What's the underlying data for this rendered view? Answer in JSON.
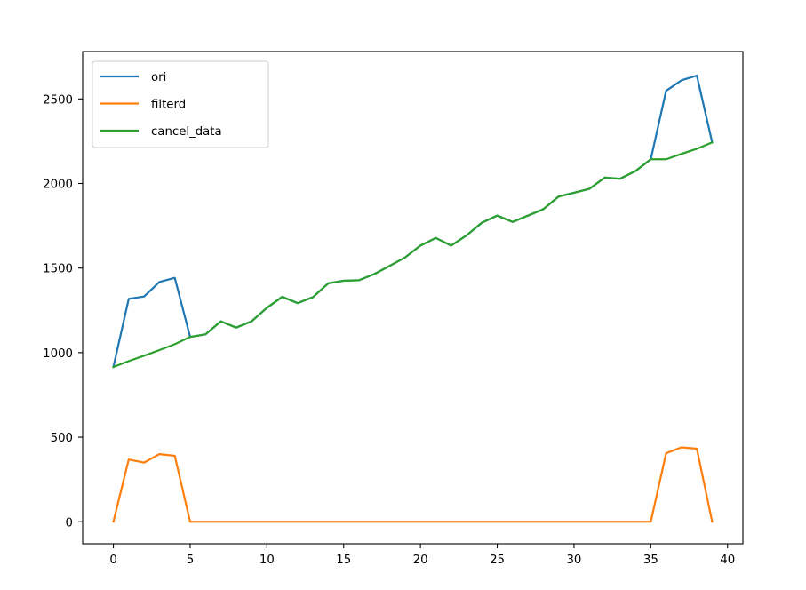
{
  "chart_data": {
    "type": "line",
    "title": "",
    "xlabel": "",
    "ylabel": "",
    "xlim": [
      -2,
      41
    ],
    "ylim": [
      -130,
      2780
    ],
    "xticks": [
      0,
      5,
      10,
      15,
      20,
      25,
      30,
      35,
      40
    ],
    "yticks": [
      0,
      500,
      1000,
      1500,
      2000,
      2500
    ],
    "grid": false,
    "legend_position": "top-left",
    "x": [
      0,
      1,
      2,
      3,
      4,
      5,
      6,
      7,
      8,
      9,
      10,
      11,
      12,
      13,
      14,
      15,
      16,
      17,
      18,
      19,
      20,
      21,
      22,
      23,
      24,
      25,
      26,
      27,
      28,
      29,
      30,
      31,
      32,
      33,
      34,
      35,
      36,
      37,
      38,
      39
    ],
    "series": [
      {
        "name": "ori",
        "color": "#1f77b4",
        "values": [
          915,
          1318,
          1332,
          1418,
          1442,
          1093,
          1108,
          1185,
          1148,
          1185,
          1265,
          1330,
          1293,
          1328,
          1410,
          1425,
          1428,
          1465,
          1513,
          1563,
          1633,
          1678,
          1633,
          1693,
          1768,
          1810,
          1773,
          1810,
          1848,
          1923,
          1945,
          1968,
          2035,
          2028,
          2073,
          2143,
          2548,
          2610,
          2638,
          2243
        ]
      },
      {
        "name": "filterd",
        "color": "#ff7f0e",
        "values": [
          0,
          368,
          350,
          400,
          390,
          0,
          0,
          0,
          0,
          0,
          0,
          0,
          0,
          0,
          0,
          0,
          0,
          0,
          0,
          0,
          0,
          0,
          0,
          0,
          0,
          0,
          0,
          0,
          0,
          0,
          0,
          0,
          0,
          0,
          0,
          0,
          405,
          440,
          432,
          0
        ]
      },
      {
        "name": "cancel_data",
        "color": "#2ca02c",
        "values": [
          915,
          950,
          982,
          1015,
          1050,
          1093,
          1108,
          1185,
          1148,
          1185,
          1265,
          1330,
          1293,
          1328,
          1410,
          1425,
          1428,
          1465,
          1513,
          1563,
          1633,
          1678,
          1633,
          1693,
          1768,
          1810,
          1773,
          1810,
          1848,
          1923,
          1945,
          1968,
          2035,
          2028,
          2073,
          2143,
          2143,
          2175,
          2205,
          2243
        ]
      }
    ]
  }
}
